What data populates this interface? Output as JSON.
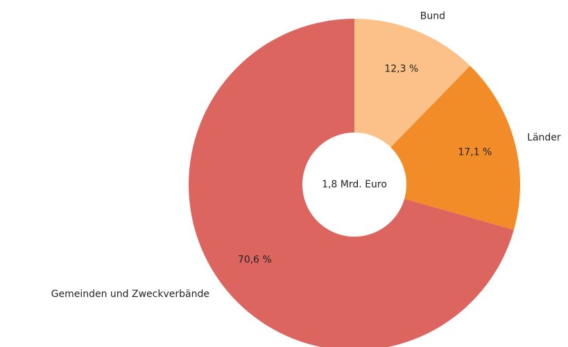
{
  "chart_data": {
    "type": "pie",
    "categories": [
      "Bund",
      "Länder",
      "Gemeinden und Zweckverbände"
    ],
    "values": [
      12.3,
      17.1,
      70.6
    ],
    "value_labels": [
      "12,3 %",
      "17,1 %",
      "70,6 %"
    ],
    "colors": [
      "#fbc189",
      "#f28c28",
      "#dc6560"
    ],
    "center_label": "1,8 Mrd. Euro"
  }
}
